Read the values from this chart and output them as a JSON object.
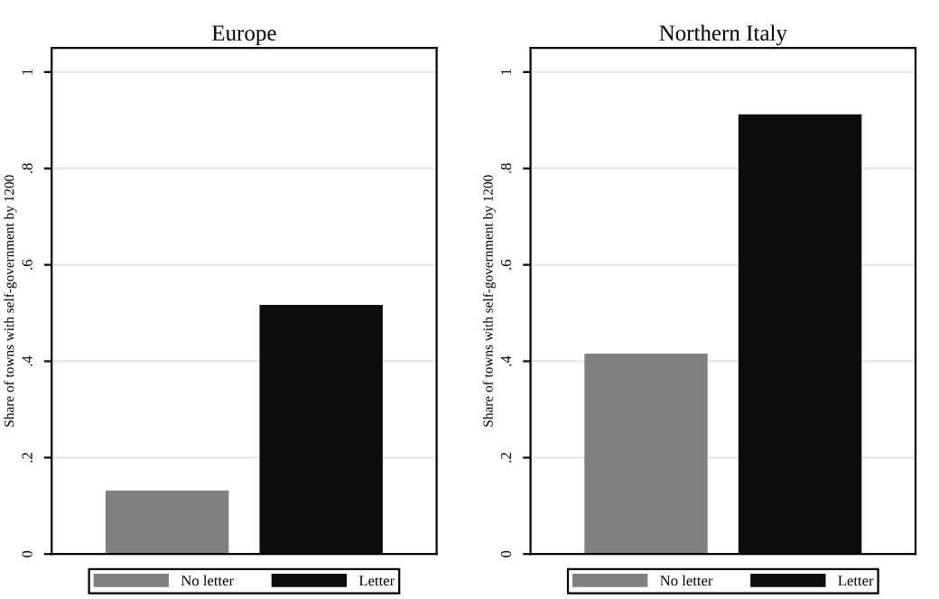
{
  "chart_data": [
    {
      "type": "bar",
      "title": "Europe",
      "ylabel": "Share of towns with self-government by 1200",
      "categories": [
        null
      ],
      "series": [
        {
          "name": "No letter",
          "color": "#808080",
          "values": [
            0.132
          ]
        },
        {
          "name": "Letter",
          "color": "#0d0d0d",
          "values": [
            0.517
          ]
        }
      ],
      "ylim": [
        0,
        1.05
      ],
      "yticks": [
        0,
        {
          "value": 0.2,
          "label": ".2"
        },
        {
          "value": 0.4,
          "label": ".4"
        },
        {
          "value": 0.6,
          "label": ".6"
        },
        {
          "value": 0.8,
          "label": ".8"
        },
        1
      ],
      "grid": "y",
      "legend": "bottom"
    },
    {
      "type": "bar",
      "title": "Northern Italy",
      "ylabel": "Share of towns with self-government by 1200",
      "categories": [
        null
      ],
      "series": [
        {
          "name": "No letter",
          "color": "#808080",
          "values": [
            0.416
          ]
        },
        {
          "name": "Letter",
          "color": "#0d0d0d",
          "values": [
            0.912
          ]
        }
      ],
      "ylim": [
        0,
        1.05
      ],
      "yticks": [
        0,
        {
          "value": 0.2,
          "label": ".2"
        },
        {
          "value": 0.4,
          "label": ".4"
        },
        {
          "value": 0.6,
          "label": ".6"
        },
        {
          "value": 0.8,
          "label": ".8"
        },
        1
      ],
      "grid": "y",
      "legend": "bottom"
    }
  ]
}
